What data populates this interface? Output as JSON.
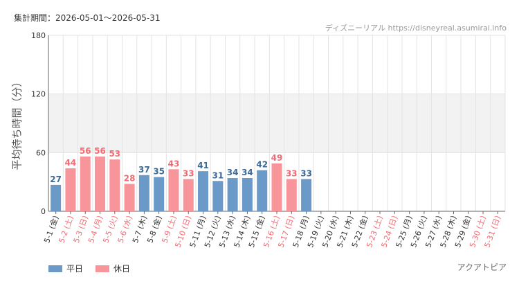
{
  "header": {
    "period_label": "集計期間：2026-05-01～2026-05-31",
    "source": "ディズニーリアル https://disneyreal.asumirai.info",
    "subject": "アクアトピア"
  },
  "colors": {
    "weekday": "#6b9ac9",
    "holiday": "#f7959b",
    "weekday_text": "#3d6a96",
    "holiday_text": "#f26b72",
    "band": "#f2f2f2",
    "grid": "#e3e3e3"
  },
  "chart_data": {
    "type": "bar",
    "ylabel": "平均待ち時間（分）",
    "ylim": [
      0,
      180
    ],
    "yticks": [
      0,
      60,
      120,
      180
    ],
    "shaded_band": [
      60,
      120
    ],
    "categories": [
      {
        "label": "5-1 (金)",
        "type": "weekday",
        "value": 27
      },
      {
        "label": "5-2 (土)",
        "type": "holiday",
        "value": 44
      },
      {
        "label": "5-3 (日)",
        "type": "holiday",
        "value": 56
      },
      {
        "label": "5-4 (月)",
        "type": "holiday",
        "value": 56
      },
      {
        "label": "5-5 (火)",
        "type": "holiday",
        "value": 53
      },
      {
        "label": "5-6 (水)",
        "type": "holiday",
        "value": 28
      },
      {
        "label": "5-7 (木)",
        "type": "weekday",
        "value": 37
      },
      {
        "label": "5-8 (金)",
        "type": "weekday",
        "value": 35
      },
      {
        "label": "5-9 (土)",
        "type": "holiday",
        "value": 43
      },
      {
        "label": "5-10 (日)",
        "type": "holiday",
        "value": 33
      },
      {
        "label": "5-11 (月)",
        "type": "weekday",
        "value": 41
      },
      {
        "label": "5-12 (火)",
        "type": "weekday",
        "value": 31
      },
      {
        "label": "5-13 (水)",
        "type": "weekday",
        "value": 34
      },
      {
        "label": "5-14 (木)",
        "type": "weekday",
        "value": 34
      },
      {
        "label": "5-15 (金)",
        "type": "weekday",
        "value": 42
      },
      {
        "label": "5-16 (土)",
        "type": "holiday",
        "value": 49
      },
      {
        "label": "5-17 (日)",
        "type": "holiday",
        "value": 33
      },
      {
        "label": "5-18 (月)",
        "type": "weekday",
        "value": 33
      },
      {
        "label": "5-19 (火)",
        "type": "weekday",
        "value": null
      },
      {
        "label": "5-20 (水)",
        "type": "weekday",
        "value": null
      },
      {
        "label": "5-21 (木)",
        "type": "weekday",
        "value": null
      },
      {
        "label": "5-22 (金)",
        "type": "weekday",
        "value": null
      },
      {
        "label": "5-23 (土)",
        "type": "holiday",
        "value": null
      },
      {
        "label": "5-24 (日)",
        "type": "holiday",
        "value": null
      },
      {
        "label": "5-25 (月)",
        "type": "weekday",
        "value": null
      },
      {
        "label": "5-26 (火)",
        "type": "weekday",
        "value": null
      },
      {
        "label": "5-27 (水)",
        "type": "weekday",
        "value": null
      },
      {
        "label": "5-28 (木)",
        "type": "weekday",
        "value": null
      },
      {
        "label": "5-29 (金)",
        "type": "weekday",
        "value": null
      },
      {
        "label": "5-30 (土)",
        "type": "holiday",
        "value": null
      },
      {
        "label": "5-31 (日)",
        "type": "holiday",
        "value": null
      }
    ],
    "legend": [
      {
        "label": "平日",
        "type": "weekday"
      },
      {
        "label": "休日",
        "type": "holiday"
      }
    ],
    "legend_position": "bottom-left"
  }
}
